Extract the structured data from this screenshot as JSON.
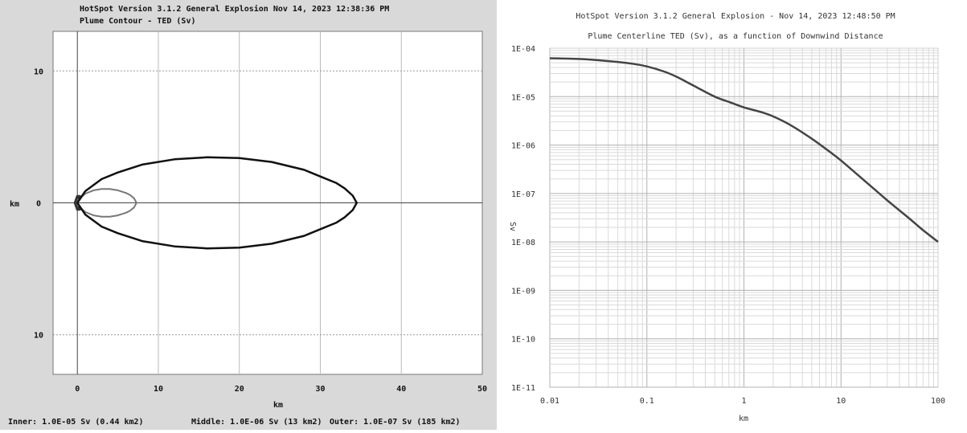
{
  "chart_data": [
    {
      "type": "contour",
      "title": "HotSpot  Version 3.1.2 General Explosion  Nov 14, 2023 12:38:36 PM",
      "subtitle": "Plume Contour - TED (Sv)",
      "xlabel": "km",
      "ylabel": "km",
      "xlim": [
        -3,
        50
      ],
      "ylim": [
        -13,
        13
      ],
      "x_ticks": [
        0,
        10,
        20,
        30,
        40,
        50
      ],
      "x_tick_labels": [
        "0",
        "10",
        "20",
        "30",
        "40",
        "50"
      ],
      "y_ticks": [
        10,
        0,
        -10
      ],
      "y_tick_labels": [
        "10",
        "0",
        "10"
      ],
      "grid": true,
      "series": [
        {
          "name": "Inner",
          "x": [
            -0.3,
            0.0,
            0.3,
            0.25,
            0.0,
            -0.3
          ],
          "y_halfwidth": [
            0,
            0.5,
            0.5,
            0.3,
            0.5,
            0
          ],
          "color": "#333333"
        },
        {
          "name": "Middle",
          "x": [
            0,
            0.5,
            1,
            2,
            3,
            4,
            5,
            6,
            6.5,
            7,
            7.3
          ],
          "y_halfwidth": [
            0,
            0.45,
            0.7,
            0.95,
            1.05,
            1.05,
            0.95,
            0.75,
            0.6,
            0.35,
            0
          ],
          "color": "#777777"
        },
        {
          "name": "Outer",
          "x": [
            0,
            1,
            3,
            5,
            8,
            12,
            16,
            20,
            24,
            28,
            30,
            32,
            33,
            34,
            34.5
          ],
          "y_halfwidth": [
            0,
            0.9,
            1.8,
            2.3,
            2.9,
            3.3,
            3.45,
            3.4,
            3.1,
            2.5,
            2.0,
            1.5,
            1.1,
            0.55,
            0
          ],
          "color": "#111111"
        }
      ],
      "footer": [
        "Inner: 1.0E-05 Sv (0.44 km2)",
        "Middle: 1.0E-06 Sv (13 km2)",
        "Outer: 1.0E-07 Sv (185 km2)"
      ]
    },
    {
      "type": "line",
      "title": "HotSpot Version 3.1.2 General Explosion - Nov 14, 2023 12:48:50 PM",
      "subtitle": "Plume Centerline TED (Sv), as a function of Downwind Distance",
      "xlabel": "km",
      "ylabel": "Sv",
      "x_scale": "log",
      "y_scale": "log",
      "xlim": [
        0.01,
        100
      ],
      "ylim": [
        1e-11,
        0.0001
      ],
      "x_tick_labels": [
        "0.01",
        "0.1",
        "1",
        "10",
        "100"
      ],
      "y_tick_labels": [
        "1E-04",
        "1E-05",
        "1E-06",
        "1E-07",
        "1E-08",
        "1E-09",
        "1E-10",
        "1E-11"
      ],
      "grid": true,
      "series": [
        {
          "color": "#444444",
          "x": [
            0.01,
            0.02,
            0.03,
            0.05,
            0.07,
            0.1,
            0.15,
            0.2,
            0.3,
            0.5,
            0.7,
            1,
            1.5,
            2,
            3,
            5,
            7,
            10,
            20,
            30,
            50,
            70,
            100
          ],
          "y": [
            6.2e-05,
            6e-05,
            5.7e-05,
            5.2e-05,
            4.8e-05,
            4.2e-05,
            3.3e-05,
            2.6e-05,
            1.7e-05,
            1e-05,
            7.8e-06,
            6e-06,
            4.8e-06,
            3.9e-06,
            2.6e-06,
            1.35e-06,
            8.3e-07,
            4.8e-07,
            1.45e-07,
            7.2e-08,
            3.1e-08,
            1.75e-08,
            1e-08
          ]
        }
      ]
    }
  ]
}
